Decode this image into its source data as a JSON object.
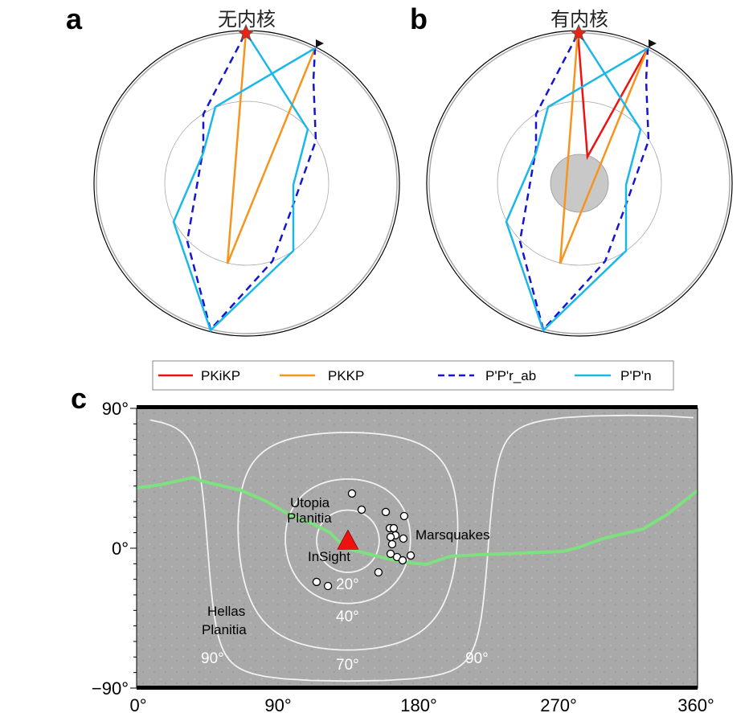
{
  "panels": {
    "a": {
      "label": "a",
      "title": "无内核"
    },
    "b": {
      "label": "b",
      "title": "有内核"
    },
    "c": {
      "label": "c"
    }
  },
  "legend": [
    {
      "label": "PKiKP",
      "color": "#ee1111",
      "style": "solid"
    },
    {
      "label": "PKKP",
      "color": "#f7941d",
      "style": "solid"
    },
    {
      "label": "P'P'r_ab",
      "color": "#1414d2",
      "style": "dashed"
    },
    {
      "label": "P'P'n",
      "color": "#1ab8e8",
      "style": "solid"
    }
  ],
  "map": {
    "x_ticks": [
      "0°",
      "90°",
      "180°",
      "270°",
      "360°"
    ],
    "y_ticks": [
      "90°",
      "0°",
      "−90°"
    ],
    "xlim": [
      0,
      360
    ],
    "ylim": [
      -90,
      90
    ],
    "station": {
      "label": "InSight",
      "lon": 135.6,
      "lat": 4.5,
      "color": "#ee1111"
    },
    "region_labels": {
      "utopia": [
        "Utopia",
        "Planitia"
      ],
      "hellas": [
        "Hellas",
        "Planitia"
      ],
      "quakes": "Marsquakes"
    },
    "distance_rings": [
      {
        "deg": 20,
        "label": "20°"
      },
      {
        "deg": 40,
        "label": "40°"
      },
      {
        "deg": 70,
        "label": "70°"
      },
      {
        "deg": 90,
        "label": "90°"
      }
    ],
    "dichotomy_color": "#7ee07e",
    "dichotomy": [
      [
        0,
        38.8
      ],
      [
        15.5,
        40.9
      ],
      [
        36.1,
        45.5
      ],
      [
        41.3,
        43.5
      ],
      [
        51.6,
        40.9
      ],
      [
        67,
        37.3
      ],
      [
        82.5,
        30.5
      ],
      [
        98,
        21.7
      ],
      [
        113.5,
        15.5
      ],
      [
        123.8,
        10.3
      ],
      [
        134.1,
        0
      ],
      [
        154.7,
        -5.2
      ],
      [
        170.2,
        -8.8
      ],
      [
        185.7,
        -10.4
      ],
      [
        201.1,
        -5.2
      ],
      [
        221.8,
        -4.1
      ],
      [
        247.6,
        -3.1
      ],
      [
        273.4,
        -2.1
      ],
      [
        283.7,
        0.5
      ],
      [
        299.2,
        6.2
      ],
      [
        325,
        12.4
      ],
      [
        340.5,
        21.7
      ],
      [
        360,
        37.2
      ]
    ],
    "marsquakes": [
      [
        138.2,
        35.2
      ],
      [
        144.4,
        24.8
      ],
      [
        159.9,
        23.3
      ],
      [
        171.7,
        20.7
      ],
      [
        162.5,
        12.9
      ],
      [
        165,
        12.9
      ],
      [
        166.1,
        8.3
      ],
      [
        163,
        7.2
      ],
      [
        164,
        2.6
      ],
      [
        171.2,
        6.2
      ],
      [
        163,
        -3.6
      ],
      [
        167.1,
        -5.7
      ],
      [
        170.7,
        -7.8
      ],
      [
        175.9,
        -4.7
      ],
      [
        155.2,
        -15.5
      ],
      [
        115.5,
        -21.7
      ],
      [
        122.8,
        -24.3
      ]
    ]
  }
}
